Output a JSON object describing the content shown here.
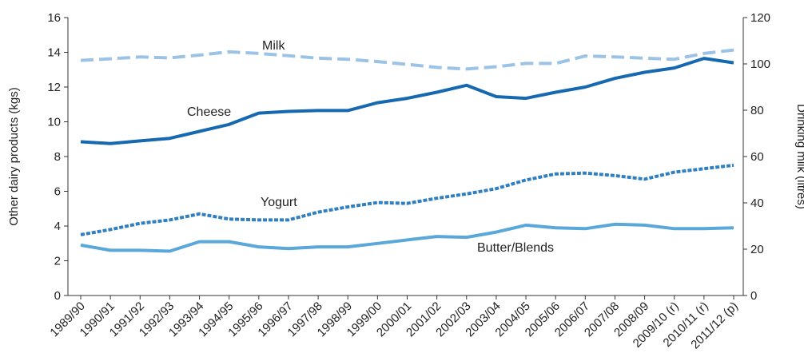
{
  "chart_data": {
    "type": "line",
    "categories": [
      "1989/90",
      "1990/91",
      "1991/92",
      "1992/93",
      "1993/94",
      "1994/95",
      "1995/96",
      "1996/97",
      "1997/98",
      "1998/99",
      "1999/00",
      "2000/01",
      "2001/02",
      "2002/03",
      "2003/04",
      "2004/05",
      "2005/06",
      "2006/07",
      "2007/08",
      "2008/09",
      "2009/10 (r)",
      "2010/11 (r)",
      "2011/12 (p)"
    ],
    "ylabel": "Other dairy products (kgs)",
    "y2label": "Drinking milk (litres)",
    "ylim": [
      0,
      16
    ],
    "y2lim": [
      0,
      120
    ],
    "yticks": [
      "0",
      "2",
      "4",
      "6",
      "8",
      "10",
      "12",
      "14",
      "16"
    ],
    "y2ticks": [
      "0",
      "20",
      "40",
      "60",
      "80",
      "100",
      "120"
    ],
    "grid": false,
    "legend": "inline labels",
    "series": [
      {
        "name": "Milk",
        "axis": "right",
        "style": "dashed",
        "color": "#9cc3e6",
        "values": [
          101.5,
          102.2,
          103.0,
          102.6,
          103.8,
          105.2,
          104.5,
          103.5,
          102.5,
          102.0,
          101.0,
          99.8,
          98.5,
          97.8,
          98.8,
          100.2,
          100.2,
          103.4,
          103.0,
          102.5,
          102.0,
          104.5,
          106.0
        ]
      },
      {
        "name": "Cheese",
        "axis": "left",
        "style": "solid",
        "color": "#1669b0",
        "values": [
          8.85,
          8.75,
          8.9,
          9.05,
          9.45,
          9.85,
          10.5,
          10.6,
          10.65,
          10.65,
          11.1,
          11.35,
          11.7,
          12.1,
          11.45,
          11.35,
          11.7,
          12.0,
          12.5,
          12.85,
          13.1,
          13.65,
          13.4
        ]
      },
      {
        "name": "Yogurt",
        "axis": "left",
        "style": "dashed",
        "color": "#2f7fc1",
        "values": [
          3.5,
          3.8,
          4.15,
          4.35,
          4.7,
          4.4,
          4.35,
          4.35,
          4.8,
          5.1,
          5.35,
          5.3,
          5.6,
          5.85,
          6.15,
          6.65,
          7.0,
          7.05,
          6.9,
          6.7,
          7.1,
          7.3,
          7.5
        ]
      },
      {
        "name": "Butter/Blends",
        "axis": "left",
        "style": "solid",
        "color": "#5aa7da",
        "values": [
          2.9,
          2.6,
          2.6,
          2.55,
          3.1,
          3.1,
          2.8,
          2.7,
          2.8,
          2.8,
          3.0,
          3.2,
          3.4,
          3.35,
          3.65,
          4.05,
          3.9,
          3.85,
          4.1,
          4.05,
          3.85,
          3.85,
          3.9
        ]
      }
    ]
  }
}
